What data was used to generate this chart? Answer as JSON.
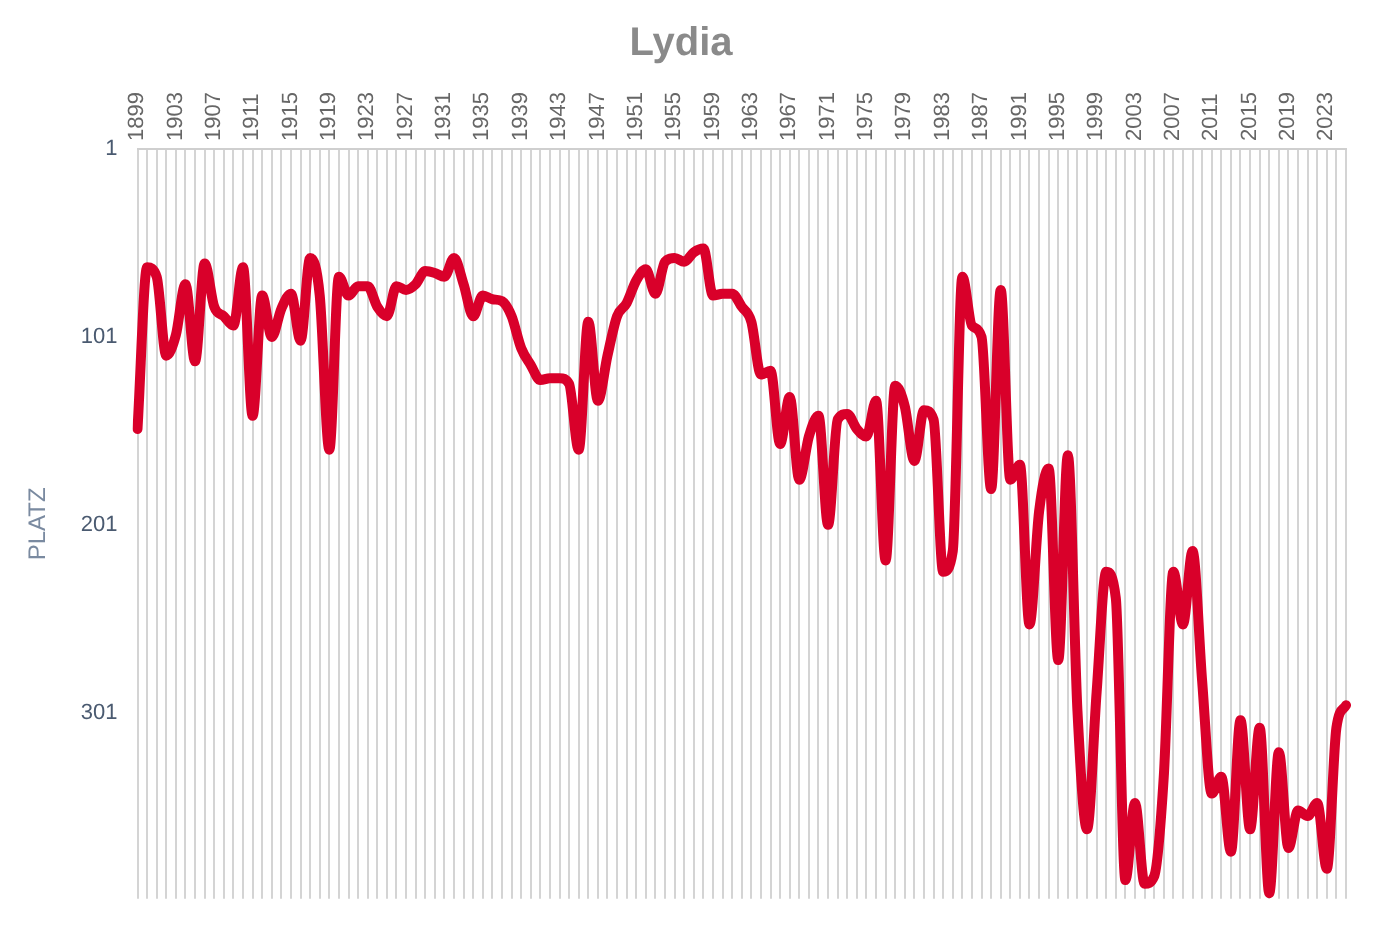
{
  "chart_data": {
    "type": "line",
    "title": "Lydia",
    "ylabel": "PLATZ",
    "categories": [
      "1899",
      null,
      null,
      null,
      "1903",
      null,
      null,
      null,
      "1907",
      null,
      null,
      null,
      "1911",
      null,
      null,
      null,
      "1915",
      null,
      null,
      null,
      "1919",
      null,
      null,
      null,
      "1923",
      null,
      null,
      null,
      "1927",
      null,
      null,
      null,
      "1931",
      null,
      null,
      null,
      "1935",
      null,
      null,
      null,
      "1939",
      null,
      null,
      null,
      "1943",
      null,
      null,
      null,
      "1947",
      null,
      null,
      null,
      "1951",
      null,
      null,
      null,
      "1955",
      null,
      null,
      null,
      "1959",
      null,
      null,
      null,
      "1963",
      null,
      null,
      null,
      "1967",
      null,
      null,
      null,
      "1971",
      null,
      null,
      null,
      "1975",
      null,
      null,
      null,
      "1979",
      null,
      null,
      null,
      "1983",
      null,
      null,
      null,
      "1987",
      null,
      null,
      null,
      "1991",
      null,
      null,
      null,
      "1995",
      null,
      null,
      null,
      "1999",
      null,
      null,
      null,
      "2003",
      null,
      null,
      null,
      "2007",
      null,
      null,
      null,
      "2011",
      null,
      null,
      null,
      "2015",
      null,
      null,
      null,
      "2019",
      null,
      null,
      null,
      "2023",
      null,
      null
    ],
    "series": [
      {
        "color": "#d9002a",
        "values": [
          150,
          64,
          69,
          111,
          100,
          73,
          114,
          62,
          85,
          90,
          95,
          64,
          143,
          79,
          101,
          86,
          78,
          103,
          59,
          79,
          161,
          69,
          79,
          74,
          74,
          85,
          90,
          74,
          76,
          73,
          66,
          67,
          69,
          59,
          73,
          90,
          79,
          81,
          82,
          90,
          107,
          116,
          124,
          123,
          123,
          126,
          161,
          93,
          135,
          111,
          90,
          83,
          71,
          65,
          78,
          61,
          59,
          61,
          56,
          54,
          79,
          78,
          78,
          85,
          93,
          121,
          119,
          158,
          133,
          177,
          154,
          143,
          201,
          145,
          142,
          150,
          154,
          135,
          220,
          127,
          138,
          167,
          140,
          145,
          226,
          215,
          69,
          95,
          101,
          182,
          76,
          177,
          169,
          254,
          194,
          171,
          273,
          164,
          300,
          363,
          290,
          226,
          240,
          390,
          349,
          392,
          388,
          335,
          226,
          254,
          215,
          284,
          344,
          335,
          375,
          305,
          363,
          309,
          397,
          322,
          373,
          353,
          356,
          349,
          384,
          309,
          297
        ]
      }
    ],
    "ylim": [
      400,
      1
    ],
    "yticks": [
      1,
      101,
      201,
      301
    ],
    "grid": "x",
    "legend": false,
    "marker": "none",
    "line_style": "solid"
  }
}
